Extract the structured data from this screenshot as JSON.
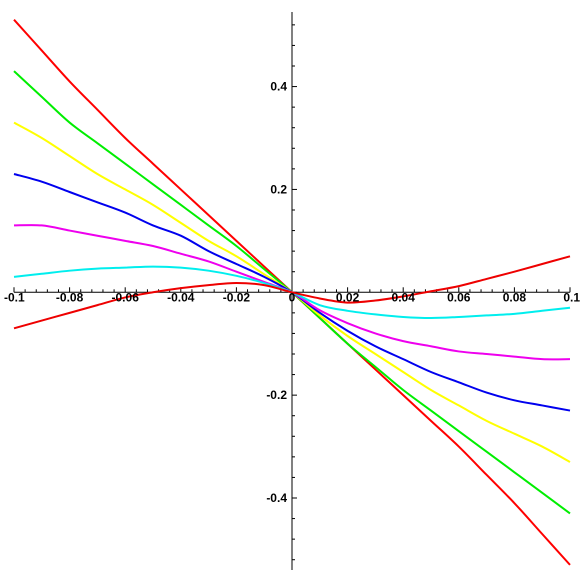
{
  "chart_data": {
    "type": "line",
    "title": "",
    "xlabel": "",
    "ylabel": "",
    "xlim": [
      -0.1,
      0.1
    ],
    "ylim": [
      -0.54,
      0.545
    ],
    "grid": false,
    "legend": "none",
    "x_ticks": [
      -0.1,
      -0.08,
      -0.06,
      -0.04,
      -0.02,
      0,
      0.02,
      0.04,
      0.06,
      0.08,
      0.1
    ],
    "x_tick_labels": [
      "-0.1",
      "-0.08",
      "-0.06",
      "-0.04",
      "-0.02",
      "0",
      "0.02",
      "0.04",
      "0.06",
      "0.08",
      "0.1"
    ],
    "y_ticks": [
      -0.4,
      -0.2,
      0.2,
      0.4
    ],
    "y_tick_labels": [
      "-0.4",
      "-0.2",
      "0.2",
      "0.4"
    ],
    "series": [
      {
        "color": "#ff0000",
        "x": [
          -0.1,
          -0.09,
          -0.08,
          -0.07,
          -0.06,
          -0.05,
          -0.04,
          -0.03,
          -0.02,
          -0.01,
          0,
          0.01,
          0.02,
          0.03,
          0.04,
          0.05,
          0.06,
          0.07,
          0.08,
          0.09,
          0.1
        ],
        "y": [
          0.53,
          0.47,
          0.41,
          0.355,
          0.3,
          0.25,
          0.2,
          0.15,
          0.1,
          0.05,
          0,
          -0.05,
          -0.1,
          -0.15,
          -0.2,
          -0.25,
          -0.3,
          -0.355,
          -0.41,
          -0.47,
          -0.53
        ]
      },
      {
        "color": "#00ee00",
        "x": [
          -0.1,
          -0.09,
          -0.08,
          -0.07,
          -0.06,
          -0.05,
          -0.04,
          -0.03,
          -0.02,
          -0.01,
          0,
          0.01,
          0.02,
          0.03,
          0.04,
          0.05,
          0.06,
          0.07,
          0.08,
          0.09,
          0.1
        ],
        "y": [
          0.43,
          0.38,
          0.33,
          0.29,
          0.25,
          0.21,
          0.17,
          0.13,
          0.09,
          0.045,
          0,
          -0.05,
          -0.1,
          -0.145,
          -0.19,
          -0.23,
          -0.27,
          -0.31,
          -0.35,
          -0.39,
          -0.43
        ]
      },
      {
        "color": "#ffff00",
        "x": [
          -0.1,
          -0.09,
          -0.08,
          -0.07,
          -0.06,
          -0.05,
          -0.04,
          -0.03,
          -0.02,
          -0.01,
          0,
          0.01,
          0.02,
          0.03,
          0.04,
          0.05,
          0.06,
          0.07,
          0.08,
          0.09,
          0.1
        ],
        "y": [
          0.33,
          0.3,
          0.265,
          0.23,
          0.2,
          0.17,
          0.135,
          0.1,
          0.07,
          0.035,
          0,
          -0.045,
          -0.085,
          -0.12,
          -0.155,
          -0.19,
          -0.22,
          -0.25,
          -0.275,
          -0.3,
          -0.33
        ]
      },
      {
        "color": "#0000ee",
        "x": [
          -0.1,
          -0.09,
          -0.08,
          -0.07,
          -0.06,
          -0.05,
          -0.04,
          -0.03,
          -0.02,
          -0.01,
          0,
          0.01,
          0.02,
          0.03,
          0.04,
          0.05,
          0.06,
          0.07,
          0.08,
          0.09,
          0.1
        ],
        "y": [
          0.23,
          0.215,
          0.195,
          0.175,
          0.155,
          0.13,
          0.11,
          0.08,
          0.055,
          0.03,
          0,
          -0.04,
          -0.075,
          -0.105,
          -0.13,
          -0.155,
          -0.175,
          -0.195,
          -0.21,
          -0.22,
          -0.23
        ]
      },
      {
        "color": "#ee00ee",
        "x": [
          -0.1,
          -0.09,
          -0.08,
          -0.07,
          -0.06,
          -0.05,
          -0.04,
          -0.03,
          -0.02,
          -0.01,
          0,
          0.01,
          0.02,
          0.03,
          0.04,
          0.05,
          0.06,
          0.07,
          0.08,
          0.09,
          0.1
        ],
        "y": [
          0.13,
          0.13,
          0.12,
          0.11,
          0.1,
          0.09,
          0.075,
          0.06,
          0.04,
          0.02,
          0,
          -0.035,
          -0.06,
          -0.08,
          -0.095,
          -0.105,
          -0.115,
          -0.12,
          -0.125,
          -0.13,
          -0.13
        ]
      },
      {
        "color": "#00eeee",
        "x": [
          -0.1,
          -0.09,
          -0.08,
          -0.07,
          -0.06,
          -0.05,
          -0.04,
          -0.03,
          -0.02,
          -0.01,
          0,
          0.01,
          0.02,
          0.03,
          0.04,
          0.05,
          0.06,
          0.07,
          0.08,
          0.09,
          0.1
        ],
        "y": [
          0.03,
          0.036,
          0.042,
          0.046,
          0.048,
          0.05,
          0.048,
          0.042,
          0.032,
          0.018,
          0,
          -0.025,
          -0.036,
          -0.043,
          -0.048,
          -0.05,
          -0.048,
          -0.045,
          -0.042,
          -0.036,
          -0.03
        ]
      },
      {
        "color": "#ee0000",
        "x": [
          -0.1,
          -0.09,
          -0.08,
          -0.07,
          -0.06,
          -0.05,
          -0.04,
          -0.03,
          -0.02,
          -0.01,
          0,
          0.01,
          0.02,
          0.03,
          0.04,
          0.05,
          0.06,
          0.07,
          0.08,
          0.09,
          0.1
        ],
        "y": [
          -0.07,
          -0.055,
          -0.04,
          -0.025,
          -0.01,
          0.0,
          0.008,
          0.014,
          0.018,
          0.014,
          0,
          -0.012,
          -0.02,
          -0.016,
          -0.008,
          0.002,
          0.012,
          0.026,
          0.04,
          0.055,
          0.07
        ]
      }
    ]
  }
}
